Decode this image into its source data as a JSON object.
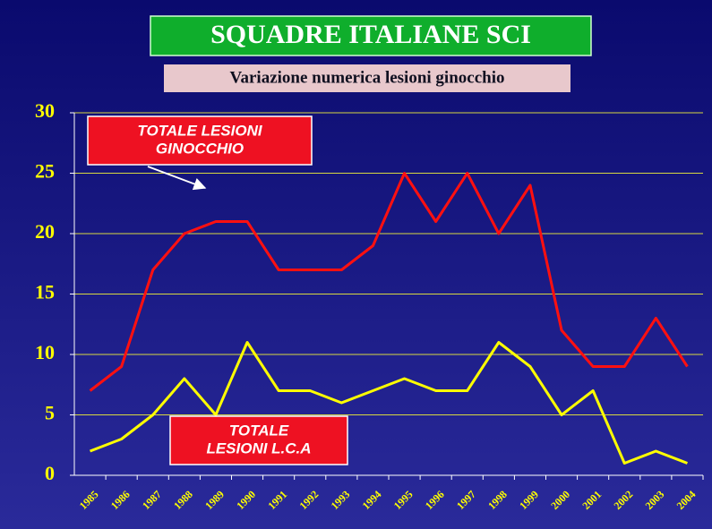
{
  "chart_data": {
    "type": "line",
    "title": "SQUADRE ITALIANE SCI",
    "subtitle": "Variazione numerica lesioni ginocchio",
    "categories": [
      "1985",
      "1986",
      "1987",
      "1988",
      "1989",
      "1990",
      "1991",
      "1992",
      "1993",
      "1994",
      "1995",
      "1996",
      "1997",
      "1998",
      "1999",
      "2000",
      "2001",
      "2002",
      "2003",
      "2004"
    ],
    "series": [
      {
        "color": "#ff1010",
        "values": [
          7,
          9,
          17,
          20,
          21,
          21,
          17,
          17,
          17,
          19,
          25,
          21,
          25,
          20,
          24,
          12,
          9,
          9,
          13,
          9
        ]
      },
      {
        "color": "#ffff00",
        "values": [
          2,
          3,
          5,
          8,
          5,
          11,
          7,
          7,
          6,
          7,
          8,
          7,
          7,
          11,
          9,
          5,
          7,
          1,
          2,
          1
        ]
      }
    ],
    "annotations": [
      {
        "lines": [
          "TOTALE LESIONI",
          "GINOCCHIO"
        ]
      },
      {
        "lines": [
          "TOTALE",
          "LESIONI  L.C.A"
        ]
      }
    ],
    "ylim": [
      0,
      30
    ],
    "yticks": [
      0,
      5,
      10,
      15,
      20,
      25,
      30
    ],
    "grid": true
  }
}
